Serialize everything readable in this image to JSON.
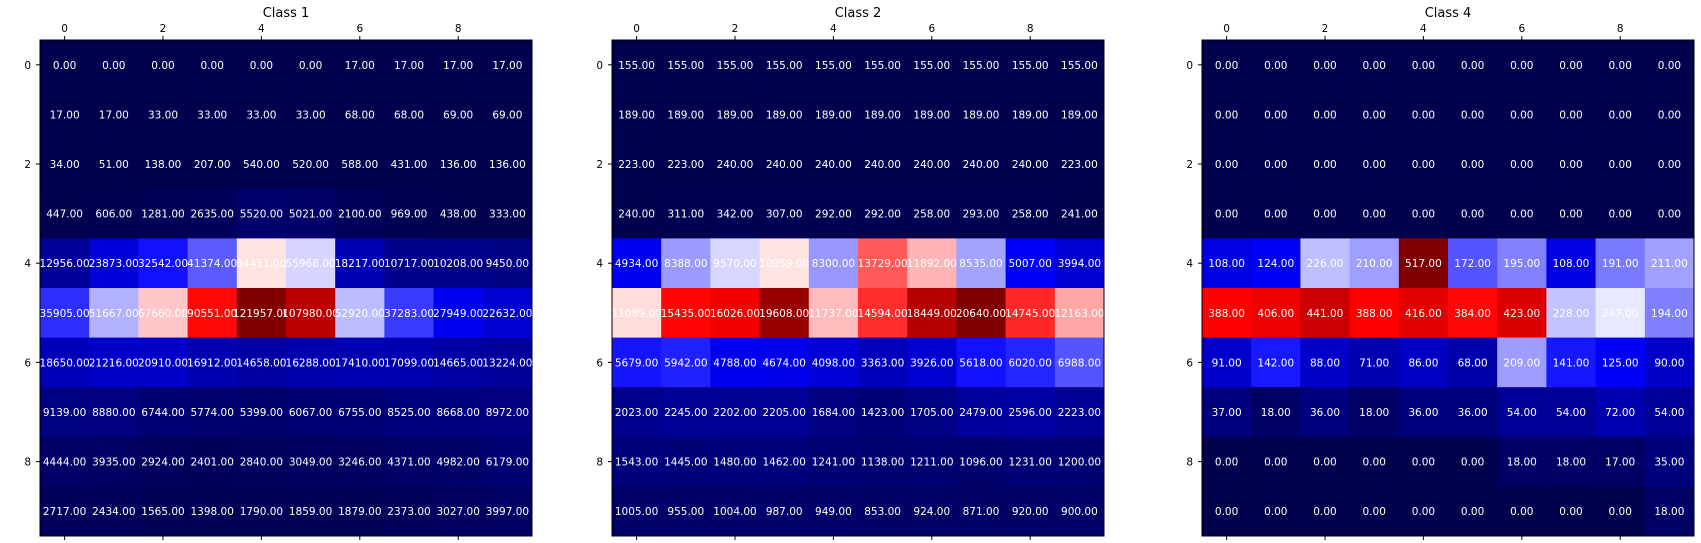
{
  "chart_data": [
    {
      "type": "heatmap",
      "title": "Class 1",
      "x_ticks": [
        "0",
        "2",
        "4",
        "6",
        "8"
      ],
      "y_ticks": [
        "0",
        "2",
        "4",
        "6",
        "8"
      ],
      "colormap": "seismic",
      "grid": false,
      "values": [
        [
          0.0,
          0.0,
          0.0,
          0.0,
          0.0,
          0.0,
          17.0,
          17.0,
          17.0,
          17.0
        ],
        [
          17.0,
          17.0,
          33.0,
          33.0,
          33.0,
          33.0,
          68.0,
          68.0,
          69.0,
          69.0
        ],
        [
          34.0,
          51.0,
          138.0,
          207.0,
          540.0,
          520.0,
          588.0,
          431.0,
          136.0,
          136.0
        ],
        [
          447.0,
          606.0,
          1281.0,
          2635.0,
          5520.0,
          5021.0,
          2100.0,
          969.0,
          438.0,
          333.0
        ],
        [
          12956.0,
          23873.0,
          32542.0,
          41374.0,
          64451.0,
          55968.0,
          18217.0,
          10717.0,
          10208.0,
          9450.0
        ],
        [
          35905.0,
          51667.0,
          67660.0,
          90551.0,
          121957.0,
          107980.0,
          52920.0,
          37283.0,
          27949.0,
          22632.0
        ],
        [
          18650.0,
          21216.0,
          20910.0,
          16912.0,
          14658.0,
          16288.0,
          17410.0,
          17099.0,
          14665.0,
          13224.0
        ],
        [
          9139.0,
          8880.0,
          6744.0,
          5774.0,
          5399.0,
          6067.0,
          6755.0,
          8525.0,
          8668.0,
          8972.0
        ],
        [
          4444.0,
          3935.0,
          2924.0,
          2401.0,
          2840.0,
          3049.0,
          3246.0,
          4371.0,
          4982.0,
          6179.0
        ],
        [
          2717.0,
          2434.0,
          1565.0,
          1398.0,
          1790.0,
          1859.0,
          1879.0,
          2373.0,
          3027.0,
          3997.0
        ]
      ]
    },
    {
      "type": "heatmap",
      "title": "Class 2",
      "x_ticks": [
        "0",
        "2",
        "4",
        "6",
        "8"
      ],
      "y_ticks": [
        "0",
        "2",
        "4",
        "6",
        "8"
      ],
      "colormap": "seismic",
      "grid": false,
      "values": [
        [
          155.0,
          155.0,
          155.0,
          155.0,
          155.0,
          155.0,
          155.0,
          155.0,
          155.0,
          155.0
        ],
        [
          189.0,
          189.0,
          189.0,
          189.0,
          189.0,
          189.0,
          189.0,
          189.0,
          189.0,
          189.0
        ],
        [
          223.0,
          223.0,
          240.0,
          240.0,
          240.0,
          240.0,
          240.0,
          240.0,
          240.0,
          223.0
        ],
        [
          240.0,
          311.0,
          342.0,
          307.0,
          292.0,
          292.0,
          258.0,
          293.0,
          258.0,
          241.0
        ],
        [
          4934.0,
          8388.0,
          9570.0,
          10959.0,
          8300.0,
          13729.0,
          11892.0,
          8535.0,
          5007.0,
          3994.0
        ],
        [
          11089.0,
          15435.0,
          16026.0,
          19608.0,
          11737.0,
          14594.0,
          18449.0,
          20640.0,
          14745.0,
          12163.0
        ],
        [
          5679.0,
          5942.0,
          4788.0,
          4674.0,
          4098.0,
          3363.0,
          3926.0,
          5618.0,
          6020.0,
          6988.0
        ],
        [
          2023.0,
          2245.0,
          2202.0,
          2205.0,
          1684.0,
          1423.0,
          1705.0,
          2479.0,
          2596.0,
          2223.0
        ],
        [
          1543.0,
          1445.0,
          1480.0,
          1462.0,
          1241.0,
          1138.0,
          1211.0,
          1096.0,
          1231.0,
          1200.0
        ],
        [
          1005.0,
          955.0,
          1004.0,
          987.0,
          949.0,
          853.0,
          924.0,
          871.0,
          920.0,
          900.0
        ]
      ]
    },
    {
      "type": "heatmap",
      "title": "Class 4",
      "x_ticks": [
        "0",
        "2",
        "4",
        "6",
        "8"
      ],
      "y_ticks": [
        "0",
        "2",
        "4",
        "6",
        "8"
      ],
      "colormap": "seismic",
      "grid": false,
      "values": [
        [
          0.0,
          0.0,
          0.0,
          0.0,
          0.0,
          0.0,
          0.0,
          0.0,
          0.0,
          0.0
        ],
        [
          0.0,
          0.0,
          0.0,
          0.0,
          0.0,
          0.0,
          0.0,
          0.0,
          0.0,
          0.0
        ],
        [
          0.0,
          0.0,
          0.0,
          0.0,
          0.0,
          0.0,
          0.0,
          0.0,
          0.0,
          0.0
        ],
        [
          0.0,
          0.0,
          0.0,
          0.0,
          0.0,
          0.0,
          0.0,
          0.0,
          0.0,
          0.0
        ],
        [
          108.0,
          124.0,
          226.0,
          210.0,
          517.0,
          172.0,
          195.0,
          108.0,
          191.0,
          211.0
        ],
        [
          388.0,
          406.0,
          441.0,
          388.0,
          416.0,
          384.0,
          423.0,
          228.0,
          247.0,
          194.0
        ],
        [
          91.0,
          142.0,
          88.0,
          71.0,
          86.0,
          68.0,
          209.0,
          141.0,
          125.0,
          90.0
        ],
        [
          37.0,
          18.0,
          36.0,
          18.0,
          36.0,
          36.0,
          54.0,
          54.0,
          72.0,
          54.0
        ],
        [
          0.0,
          0.0,
          0.0,
          0.0,
          0.0,
          0.0,
          18.0,
          18.0,
          17.0,
          35.0
        ],
        [
          0.0,
          0.0,
          0.0,
          0.0,
          0.0,
          0.0,
          0.0,
          0.0,
          0.0,
          18.0
        ]
      ]
    }
  ]
}
